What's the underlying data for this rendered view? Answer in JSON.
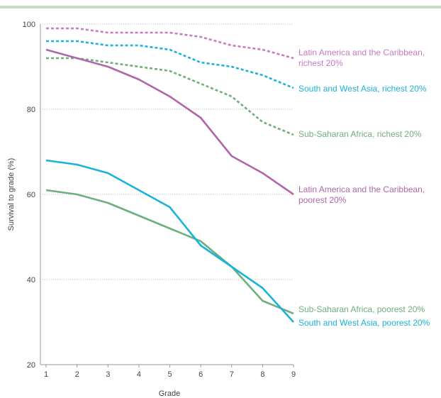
{
  "chart_data": {
    "type": "line",
    "xlabel": "Grade",
    "ylabel": "Survival to grade (%)",
    "x": [
      1,
      2,
      3,
      4,
      5,
      6,
      7,
      8,
      9
    ],
    "xticks": [
      "1",
      "2",
      "3",
      "4",
      "5",
      "6",
      "7",
      "8",
      "9"
    ],
    "yticks": [
      "20",
      "40",
      "60",
      "80",
      "100"
    ],
    "ylim": [
      20,
      100
    ],
    "xlim": [
      1,
      9
    ],
    "grid": "horizontal dotted",
    "series": [
      {
        "name_lines": [
          "Latin America and the Caribbean,",
          "richest 20%"
        ],
        "style": "dashed",
        "color": "#c77bc0",
        "values": [
          99,
          99,
          98,
          98,
          98,
          97,
          95,
          94,
          92
        ]
      },
      {
        "name_lines": [
          "South and West Asia, richest 20%"
        ],
        "style": "dashed",
        "color": "#1ab3db",
        "values": [
          96,
          96,
          95,
          95,
          94,
          91,
          90,
          88,
          85
        ]
      },
      {
        "name_lines": [
          "Sub-Saharan Africa, richest 20%"
        ],
        "style": "dashed",
        "color": "#6db07b",
        "values": [
          92,
          92,
          91,
          90,
          89,
          86,
          83,
          77,
          74
        ]
      },
      {
        "name_lines": [
          "Latin America and the Caribbean,",
          "poorest 20%"
        ],
        "style": "solid",
        "color": "#b067aa",
        "values": [
          94,
          92,
          90,
          87,
          83,
          78,
          69,
          65,
          60
        ]
      },
      {
        "name_lines": [
          "Sub-Saharan Africa, poorest 20%"
        ],
        "style": "solid",
        "color": "#6db07b",
        "values": [
          61,
          60,
          58,
          55,
          52,
          49,
          43,
          35,
          32
        ]
      },
      {
        "name_lines": [
          "South and West Asia, poorest 20%"
        ],
        "style": "solid",
        "color": "#1ab3db",
        "values": [
          68,
          67,
          65,
          61,
          57,
          48,
          43,
          38,
          30
        ]
      }
    ]
  }
}
